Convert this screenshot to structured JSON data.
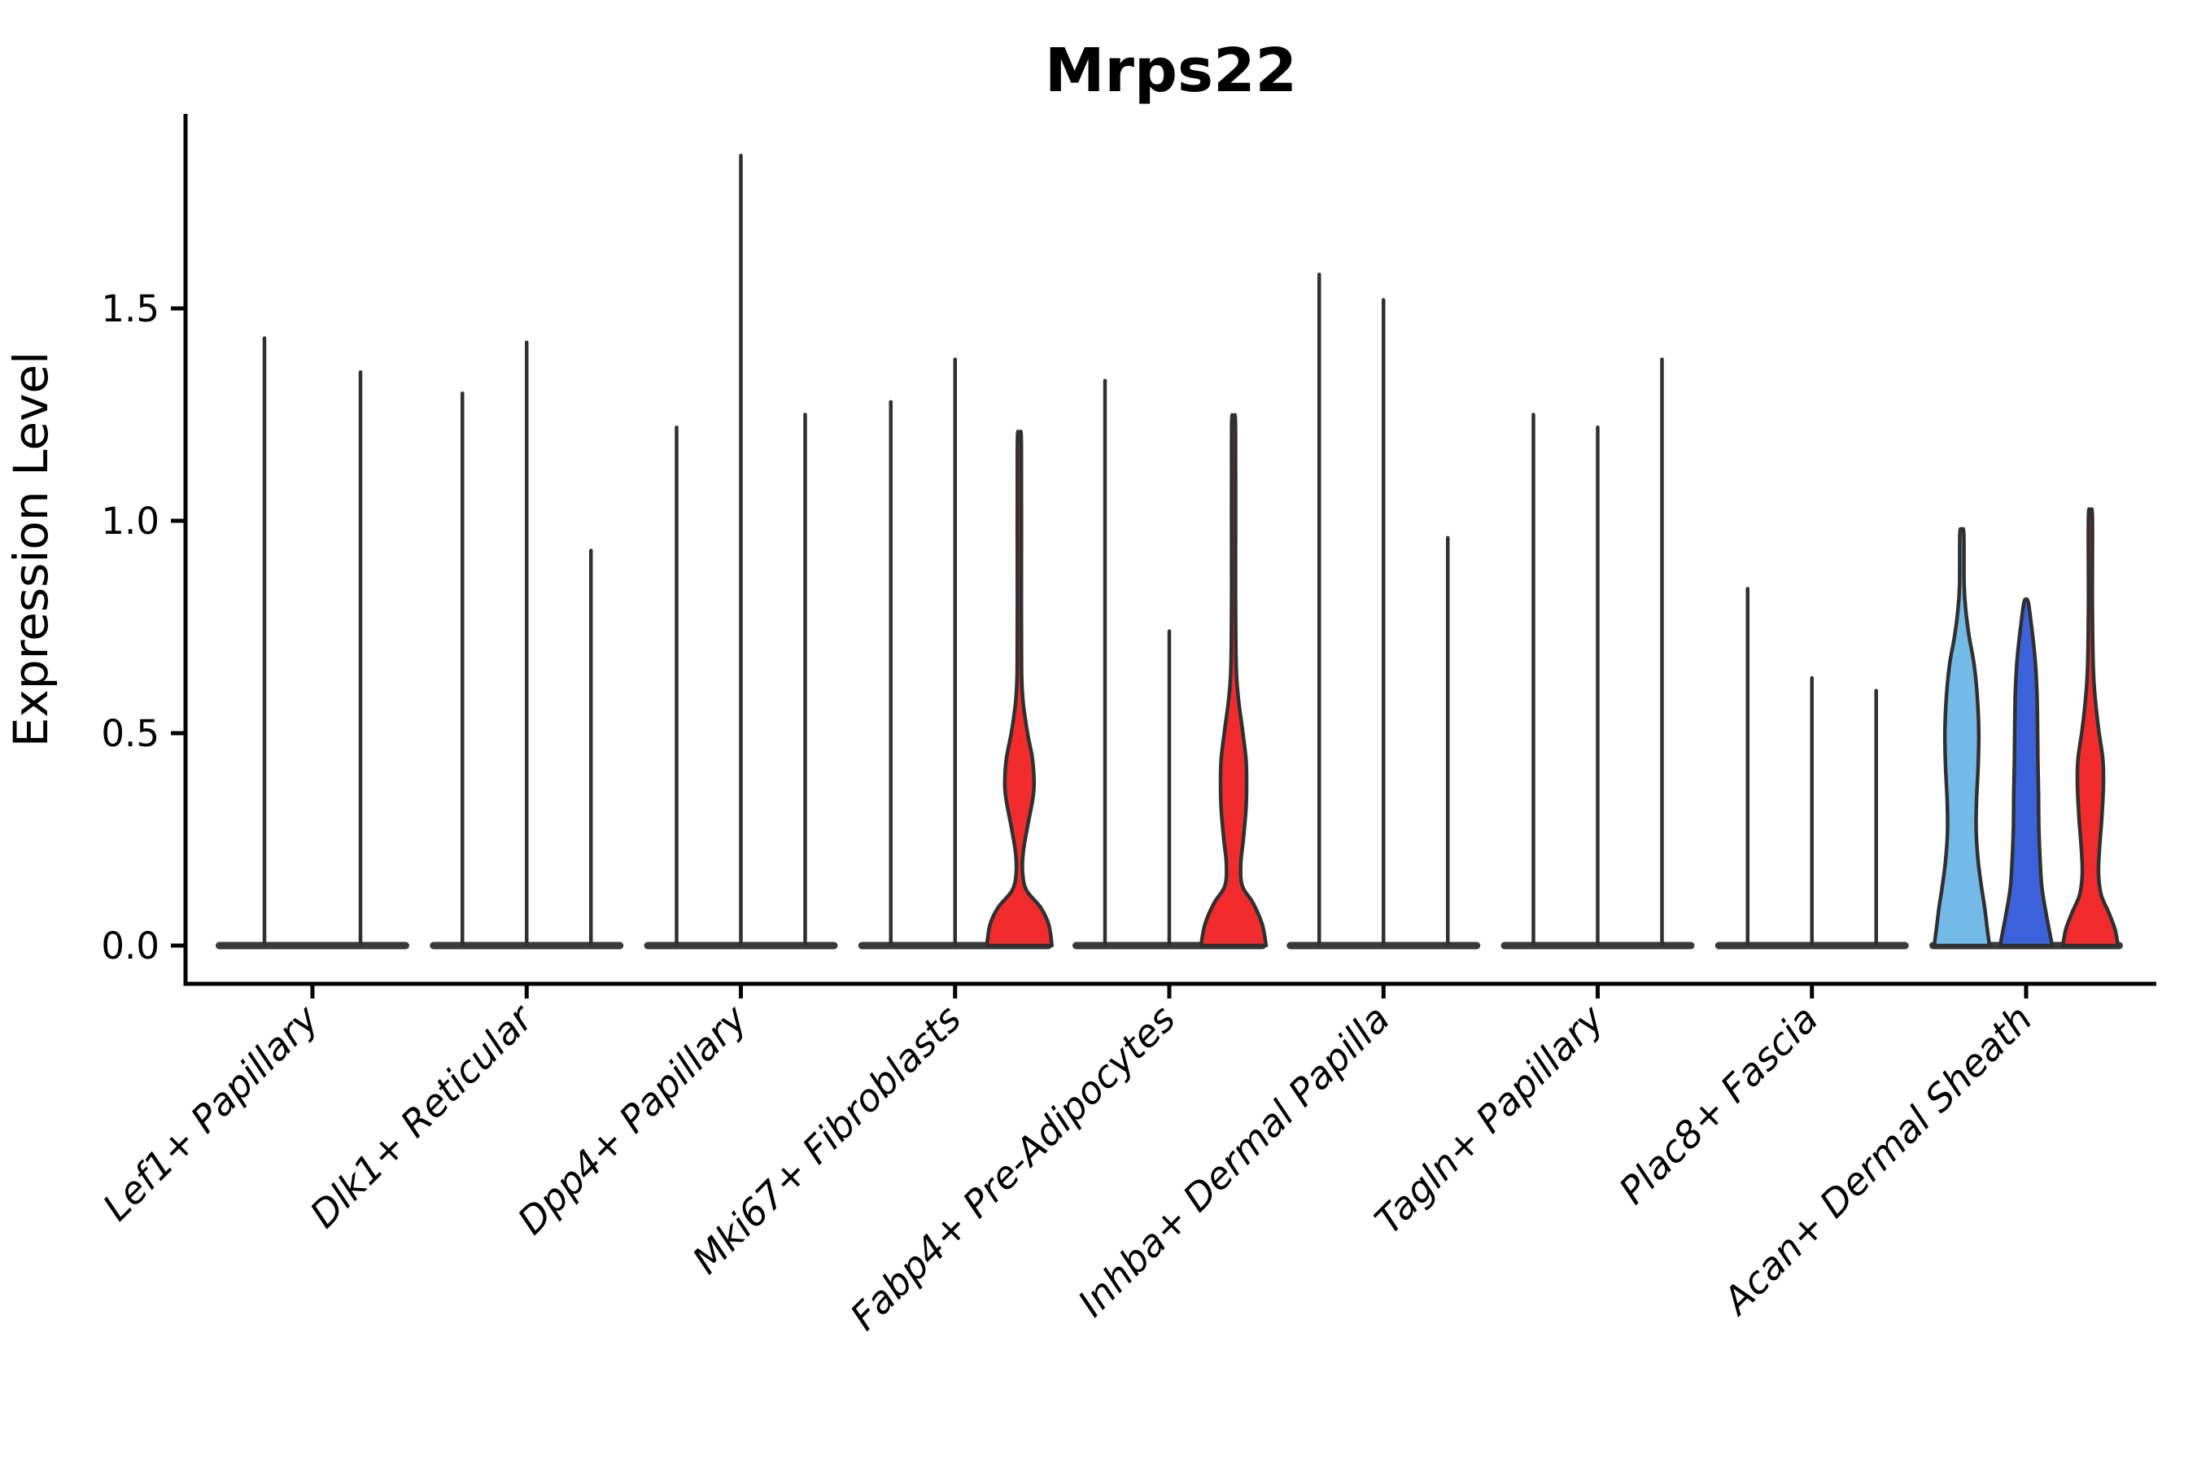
{
  "title": "Mrps22",
  "y_axis": {
    "label": "Expression Level",
    "tick_labels": [
      "0.0",
      "0.5",
      "1.0",
      "1.5"
    ],
    "tick_values": [
      0.0,
      0.5,
      1.0,
      1.5
    ]
  },
  "x_axis": {
    "categories": [
      "Lef1+ Papillary",
      "Dlk1+ Reticular",
      "Dpp4+ Papillary",
      "Mki67+ Fibroblasts",
      "Fabp4+ Pre-Adipocytes",
      "Inhba+ Dermal Papilla",
      "Tagln+ Papillary",
      "Plac8+ Fascia",
      "Acan+ Dermal Sheath"
    ]
  },
  "colors": {
    "split_1_lightblue": "#74BAE8",
    "split_2_blue": "#3D63DC",
    "split_3_red": "#F22C2C",
    "violin_stroke": "#303030",
    "baseline_bar": "#3A3A3A",
    "axis": "#000000",
    "text": "#000000",
    "background": "#FFFFFF"
  },
  "chart_data": {
    "type": "violin",
    "title": "Mrps22",
    "xlabel": "",
    "ylabel": "Expression Level",
    "ylim": [
      0,
      1.96
    ],
    "yticks": [
      0.0,
      0.5,
      1.0,
      1.5
    ],
    "grid": false,
    "legend": false,
    "x_label_rotation_deg": 45,
    "x_labels_italic": true,
    "categories": [
      "Lef1+ Papillary",
      "Dlk1+ Reticular",
      "Dpp4+ Papillary",
      "Mki67+ Fibroblasts",
      "Fabp4+ Pre-Adipocytes",
      "Inhba+ Dermal Papilla",
      "Tagln+ Papillary",
      "Plac8+ Fascia",
      "Acan+ Dermal Sheath"
    ],
    "groups": [
      {
        "category": "Lef1+ Papillary",
        "violins": [
          {
            "max_expression": 1.43,
            "style": "spike",
            "fill": "none"
          },
          {
            "max_expression": 1.35,
            "style": "spike",
            "fill": "none"
          }
        ]
      },
      {
        "category": "Dlk1+ Reticular",
        "violins": [
          {
            "max_expression": 1.3,
            "style": "spike",
            "fill": "none"
          },
          {
            "max_expression": 1.42,
            "style": "spike",
            "fill": "none"
          },
          {
            "max_expression": 0.93,
            "style": "spike",
            "fill": "none"
          }
        ]
      },
      {
        "category": "Dpp4+ Papillary",
        "violins": [
          {
            "max_expression": 1.22,
            "style": "spike",
            "fill": "none"
          },
          {
            "max_expression": 1.86,
            "style": "spike",
            "fill": "none"
          },
          {
            "max_expression": 1.25,
            "style": "spike",
            "fill": "none"
          }
        ]
      },
      {
        "category": "Mki67+ Fibroblasts",
        "violins": [
          {
            "max_expression": 1.28,
            "style": "spike",
            "fill": "none"
          },
          {
            "max_expression": 1.38,
            "style": "spike",
            "fill": "none"
          },
          {
            "max_expression": 1.18,
            "style": "filled",
            "fill": "split_3_red",
            "shape_profile": [
              [
                0,
                1.0
              ],
              [
                0.05,
                0.9
              ],
              [
                0.09,
                0.65
              ],
              [
                0.13,
                0.22
              ],
              [
                0.17,
                0.1
              ],
              [
                0.22,
                0.12
              ],
              [
                0.28,
                0.25
              ],
              [
                0.34,
                0.4
              ],
              [
                0.38,
                0.45
              ],
              [
                0.44,
                0.4
              ],
              [
                0.5,
                0.25
              ],
              [
                0.57,
                0.12
              ],
              [
                0.64,
                0.07
              ],
              [
                0.8,
                0.06
              ],
              [
                1.18,
                0.06
              ]
            ]
          }
        ]
      },
      {
        "category": "Fabp4+ Pre-Adipocytes",
        "violins": [
          {
            "max_expression": 1.33,
            "style": "spike",
            "fill": "none"
          },
          {
            "max_expression": 0.74,
            "style": "spike",
            "fill": "none"
          },
          {
            "max_expression": 1.22,
            "style": "filled",
            "fill": "split_3_red",
            "shape_profile": [
              [
                0,
                1.0
              ],
              [
                0.05,
                0.88
              ],
              [
                0.1,
                0.6
              ],
              [
                0.14,
                0.27
              ],
              [
                0.19,
                0.22
              ],
              [
                0.25,
                0.3
              ],
              [
                0.32,
                0.38
              ],
              [
                0.38,
                0.4
              ],
              [
                0.44,
                0.38
              ],
              [
                0.51,
                0.27
              ],
              [
                0.58,
                0.15
              ],
              [
                0.66,
                0.08
              ],
              [
                0.85,
                0.06
              ],
              [
                1.22,
                0.06
              ]
            ]
          }
        ]
      },
      {
        "category": "Inhba+ Dermal Papilla",
        "violins": [
          {
            "max_expression": 1.58,
            "style": "spike",
            "fill": "none"
          },
          {
            "max_expression": 1.52,
            "style": "spike",
            "fill": "none"
          },
          {
            "max_expression": 0.96,
            "style": "spike",
            "fill": "none"
          }
        ]
      },
      {
        "category": "Tagln+ Papillary",
        "violins": [
          {
            "max_expression": 1.25,
            "style": "spike",
            "fill": "none"
          },
          {
            "max_expression": 1.22,
            "style": "spike",
            "fill": "none"
          },
          {
            "max_expression": 1.38,
            "style": "spike",
            "fill": "none"
          }
        ]
      },
      {
        "category": "Plac8+ Fascia",
        "violins": [
          {
            "max_expression": 0.84,
            "style": "spike",
            "fill": "none"
          },
          {
            "max_expression": 0.63,
            "style": "spike",
            "fill": "none"
          },
          {
            "max_expression": 0.6,
            "style": "spike",
            "fill": "none"
          }
        ]
      },
      {
        "category": "Acan+ Dermal Sheath",
        "violins": [
          {
            "max_expression": 0.97,
            "style": "filled",
            "fill": "split_1_lightblue",
            "shape_profile": [
              [
                0,
                0.85
              ],
              [
                0.04,
                0.78
              ],
              [
                0.09,
                0.7
              ],
              [
                0.14,
                0.6
              ],
              [
                0.2,
                0.5
              ],
              [
                0.27,
                0.44
              ],
              [
                0.34,
                0.45
              ],
              [
                0.42,
                0.5
              ],
              [
                0.5,
                0.52
              ],
              [
                0.58,
                0.48
              ],
              [
                0.66,
                0.38
              ],
              [
                0.73,
                0.22
              ],
              [
                0.79,
                0.12
              ],
              [
                0.85,
                0.07
              ],
              [
                0.97,
                0.06
              ]
            ]
          },
          {
            "max_expression": 0.81,
            "style": "filled",
            "fill": "split_2_blue",
            "shape_profile": [
              [
                0,
                0.8
              ],
              [
                0.04,
                0.7
              ],
              [
                0.09,
                0.58
              ],
              [
                0.14,
                0.48
              ],
              [
                0.2,
                0.43
              ],
              [
                0.28,
                0.39
              ],
              [
                0.36,
                0.38
              ],
              [
                0.44,
                0.36
              ],
              [
                0.52,
                0.35
              ],
              [
                0.6,
                0.33
              ],
              [
                0.67,
                0.28
              ],
              [
                0.73,
                0.2
              ],
              [
                0.78,
                0.12
              ],
              [
                0.81,
                0.06
              ]
            ]
          },
          {
            "max_expression": 1.01,
            "style": "filled",
            "fill": "split_3_red",
            "shape_profile": [
              [
                0,
                0.85
              ],
              [
                0.04,
                0.75
              ],
              [
                0.08,
                0.55
              ],
              [
                0.12,
                0.33
              ],
              [
                0.17,
                0.25
              ],
              [
                0.23,
                0.28
              ],
              [
                0.3,
                0.35
              ],
              [
                0.38,
                0.4
              ],
              [
                0.44,
                0.38
              ],
              [
                0.51,
                0.25
              ],
              [
                0.58,
                0.15
              ],
              [
                0.65,
                0.09
              ],
              [
                0.8,
                0.06
              ],
              [
                1.01,
                0.06
              ]
            ]
          }
        ]
      }
    ]
  }
}
